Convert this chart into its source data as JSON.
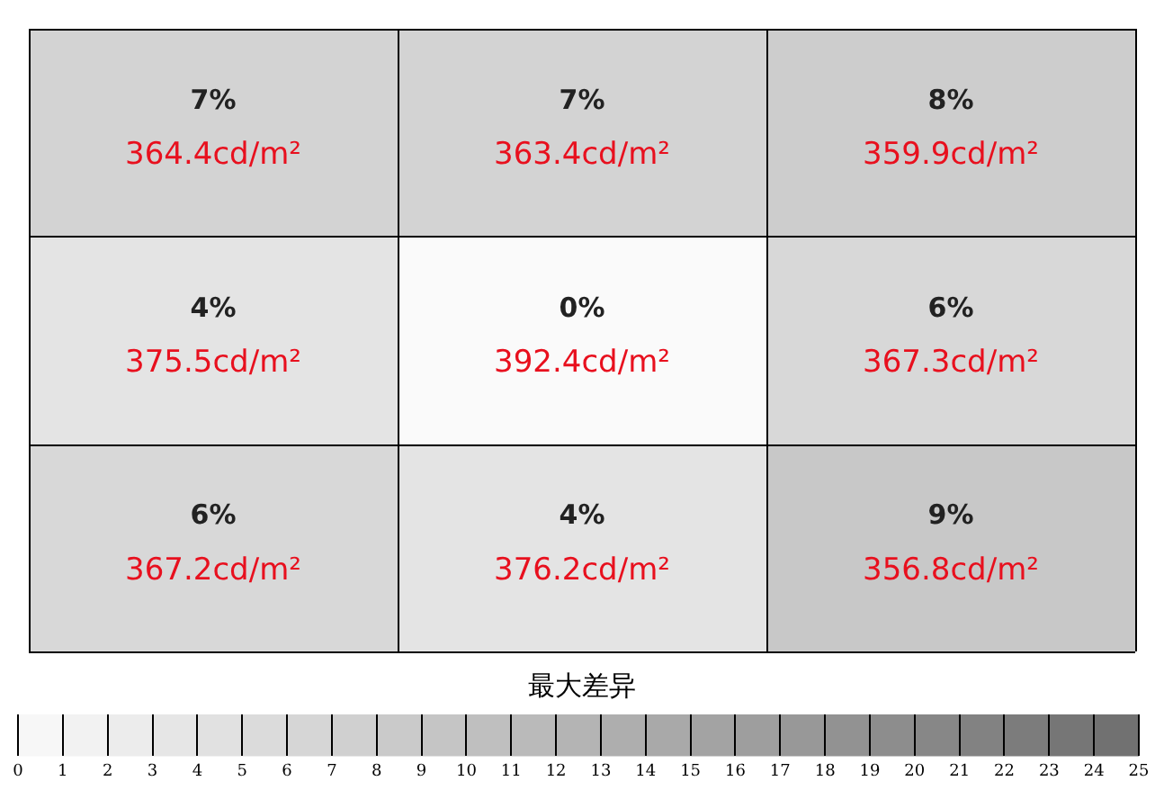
{
  "chart_data": {
    "type": "heatmap",
    "categories": [
      null,
      null,
      null
    ],
    "y_categories": [
      null,
      null,
      null
    ],
    "cells": [
      [
        7,
        7,
        8
      ],
      [
        4,
        0,
        6
      ],
      [
        6,
        4,
        9
      ]
    ],
    "cell_labels": [
      [
        "7%\n364.4cd/m²",
        "7%\n363.4cd/m²",
        "8%\n359.9cd/m²"
      ],
      [
        "4%\n375.5cd/m²",
        "0%\n392.4cd/m²",
        "6%\n367.3cd/m²"
      ],
      [
        "6%\n367.2cd/m²",
        "4%\n376.2cd/m²",
        "9%\n356.8cd/m²"
      ]
    ],
    "clabel": "最大差异",
    "clim": [
      0,
      25
    ],
    "cticks": [
      0,
      1,
      2,
      3,
      4,
      5,
      6,
      7,
      8,
      9,
      10,
      11,
      12,
      13,
      14,
      15,
      16,
      17,
      18,
      19,
      20,
      21,
      22,
      23,
      24,
      25
    ]
  }
}
